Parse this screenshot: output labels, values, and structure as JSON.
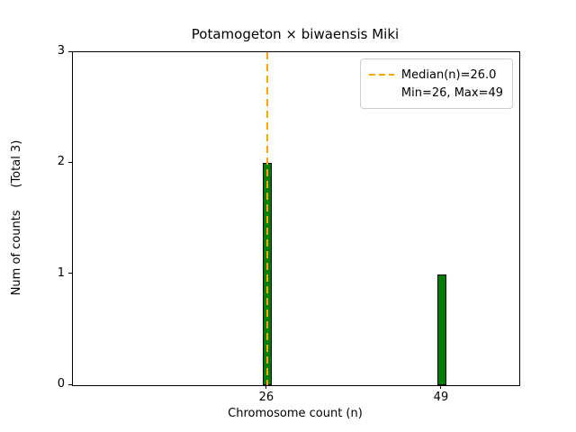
{
  "chart_data": {
    "type": "bar",
    "title": "Potamogeton × biwaensis Miki",
    "xlabel": "Chromosome count (n)",
    "ylabel": "Num of counts      (Total 3)",
    "categories": [
      26,
      49
    ],
    "values": [
      2,
      1
    ],
    "xlim": [
      0.4,
      59.2
    ],
    "ylim": [
      0,
      3
    ],
    "yticks": [
      0,
      1,
      2,
      3
    ],
    "bar_width_units": 1.1,
    "bar_color": "#008000",
    "bar_edge_color": "#000000",
    "grid": false,
    "median_line": {
      "x": 26,
      "color": "#FFA500",
      "style": "dashed"
    },
    "stats": {
      "median": 26.0,
      "min": 26,
      "max": 49,
      "total_counts": 3
    },
    "legend": {
      "position": "upper right",
      "entries": [
        {
          "label": "Median(n)=26.0",
          "swatch": "dashed-orange-line",
          "swatch_color": "#FFA500"
        },
        {
          "label": "Min=26, Max=49",
          "swatch": "none",
          "swatch_color": ""
        }
      ]
    }
  }
}
